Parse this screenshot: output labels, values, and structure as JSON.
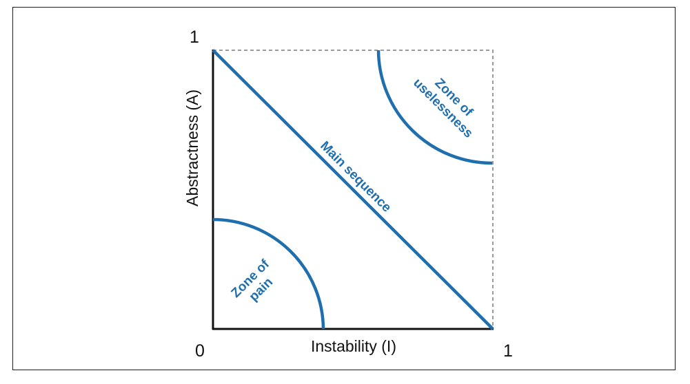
{
  "colors": {
    "accent": "#1f6fae",
    "axis": "#111111",
    "boundary": "#999999"
  },
  "diagram": {
    "x_axis": {
      "title": "Instability (I)",
      "min_label": "0",
      "max_label": "1"
    },
    "y_axis": {
      "title": "Abstractness (A)",
      "max_label": "1"
    },
    "main_sequence": {
      "label": "Main sequence"
    },
    "zone_of_pain": {
      "line1": "Zone of",
      "line2": "pain"
    },
    "zone_of_uselessness": {
      "line1": "Zone of",
      "line2": "uselessness"
    }
  }
}
